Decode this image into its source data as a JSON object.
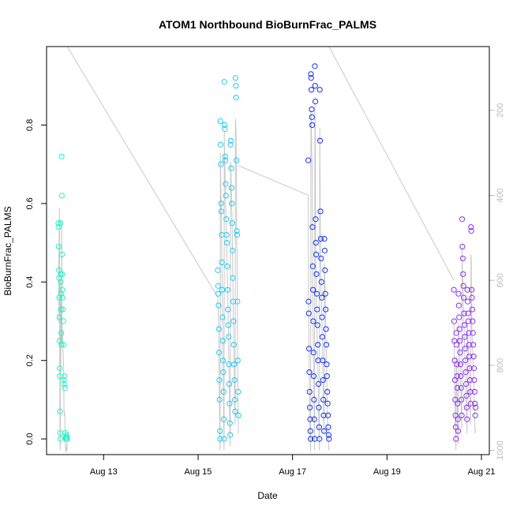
{
  "chart_data": {
    "type": "scatter",
    "title": "ATOM1 Northbound BioBurnFrac_PALMS",
    "xlabel": "Date",
    "ylabel": "BioBurnFrac_PALMS",
    "xlim": [
      "2018-08-11T19:00",
      "2018-08-21T04:00"
    ],
    "ylim": [
      -0.04,
      1.0
    ],
    "x_ticks": [
      "2018-08-13T00:00",
      "2018-08-15T00:00",
      "2018-08-17T00:00",
      "2018-08-19T00:00",
      "2018-08-21T00:00"
    ],
    "x_tick_labels": [
      "Aug 13",
      "Aug 15",
      "Aug 17",
      "Aug 19",
      "Aug 21"
    ],
    "y_ticks": [
      0.0,
      0.2,
      0.4,
      0.6,
      0.8
    ],
    "y_tick_labels": [
      "0.0",
      "0.2",
      "0.4",
      "0.6",
      "0.8"
    ],
    "right_axis": {
      "ticks": [
        200,
        400,
        600,
        800,
        1000
      ],
      "tick_labels": [
        "200",
        "400",
        "600",
        "800",
        "1000"
      ],
      "top_value": 50,
      "bottom_value": 1010,
      "color": "#bbbbbb"
    },
    "grid": false,
    "legend": "none",
    "flight_colors": [
      "#22f5c5",
      "#1ecbf2",
      "#1432f0",
      "#8c2ff2"
    ],
    "profile_color": "#c8c8c8",
    "flights": [
      {
        "color": "#22f5c5",
        "x": [
          "2018-08-12T01:00",
          "2018-08-12T01:05",
          "2018-08-12T01:10",
          "2018-08-12T01:15",
          "2018-08-12T01:20",
          "2018-08-12T01:25",
          "2018-08-12T01:30",
          "2018-08-12T01:35",
          "2018-08-12T01:40",
          "2018-08-12T01:45",
          "2018-08-12T01:50",
          "2018-08-12T01:55",
          "2018-08-12T02:00",
          "2018-08-12T02:05",
          "2018-08-12T02:10",
          "2018-08-12T02:15",
          "2018-08-12T02:20",
          "2018-08-12T02:25",
          "2018-08-12T02:30",
          "2018-08-12T02:35",
          "2018-08-12T02:40",
          "2018-08-12T02:45",
          "2018-08-12T02:50",
          "2018-08-12T02:55",
          "2018-08-12T03:00",
          "2018-08-12T03:10",
          "2018-08-12T03:20",
          "2018-08-12T03:30",
          "2018-08-12T03:40",
          "2018-08-12T03:50",
          "2018-08-12T04:00",
          "2018-08-12T04:10",
          "2018-08-12T04:20",
          "2018-08-12T04:30",
          "2018-08-12T04:40",
          "2018-08-12T04:50",
          "2018-08-12T05:00",
          "2018-08-12T05:10",
          "2018-08-12T05:20",
          "2018-08-12T05:30"
        ],
        "y": [
          0.55,
          0.54,
          0.49,
          0.43,
          0.41,
          0.36,
          0.31,
          0.25,
          0.18,
          0.16,
          0.07,
          0.015,
          0.0,
          0.55,
          0.42,
          0.4,
          0.37,
          0.33,
          0.27,
          0.24,
          0.72,
          0.62,
          0.47,
          0.42,
          0.38,
          0.36,
          0.33,
          0.3,
          0.24,
          0.15,
          0.14,
          0.16,
          0.13,
          0.015,
          0.005,
          0.0,
          0.0,
          0.005,
          0.01,
          0.0
        ],
        "pressure": [
          700,
          640,
          600,
          560,
          520,
          480,
          450,
          430,
          700,
          900,
          980,
          1000,
          980,
          600,
          700,
          800,
          650,
          700,
          720,
          750,
          460,
          520,
          680,
          700,
          740,
          720,
          760,
          780,
          800,
          900,
          920,
          910,
          930,
          990,
          1000,
          1005,
          1000,
          990,
          980,
          1000
        ]
      },
      {
        "color": "#1ecbf2",
        "x": [
          "2018-08-15T10:00",
          "2018-08-15T10:08",
          "2018-08-15T10:16",
          "2018-08-15T10:24",
          "2018-08-15T10:32",
          "2018-08-15T10:40",
          "2018-08-15T10:48",
          "2018-08-15T10:56",
          "2018-08-15T11:04",
          "2018-08-15T11:12",
          "2018-08-15T11:20",
          "2018-08-15T11:28",
          "2018-08-15T11:36",
          "2018-08-15T11:44",
          "2018-08-15T11:52",
          "2018-08-15T12:00",
          "2018-08-15T12:08",
          "2018-08-15T12:16",
          "2018-08-15T12:24",
          "2018-08-15T12:32",
          "2018-08-15T12:40",
          "2018-08-15T12:48",
          "2018-08-15T12:56",
          "2018-08-15T13:04",
          "2018-08-15T13:12",
          "2018-08-15T13:20",
          "2018-08-15T13:28",
          "2018-08-15T13:36",
          "2018-08-15T13:44",
          "2018-08-15T13:52",
          "2018-08-15T14:00",
          "2018-08-15T14:10",
          "2018-08-15T14:20",
          "2018-08-15T14:30",
          "2018-08-15T14:40",
          "2018-08-15T14:50",
          "2018-08-15T15:00",
          "2018-08-15T15:10",
          "2018-08-15T15:20",
          "2018-08-15T15:30",
          "2018-08-15T15:40",
          "2018-08-15T15:50",
          "2018-08-15T16:00",
          "2018-08-15T16:10",
          "2018-08-15T16:20",
          "2018-08-15T16:30",
          "2018-08-15T16:40",
          "2018-08-15T16:50",
          "2018-08-15T17:00",
          "2018-08-15T17:10",
          "2018-08-15T17:20",
          "2018-08-15T17:30",
          "2018-08-15T17:40",
          "2018-08-15T17:50",
          "2018-08-15T18:00",
          "2018-08-15T18:10",
          "2018-08-15T18:20",
          "2018-08-15T18:30",
          "2018-08-15T18:40",
          "2018-08-15T18:50",
          "2018-08-15T19:00",
          "2018-08-15T19:10",
          "2018-08-15T19:20",
          "2018-08-15T19:30",
          "2018-08-15T19:40",
          "2018-08-15T19:50",
          "2018-08-15T20:00",
          "2018-08-15T20:10",
          "2018-08-15T20:20",
          "2018-08-15T20:30"
        ],
        "y": [
          0.43,
          0.39,
          0.37,
          0.34,
          0.28,
          0.22,
          0.15,
          0.1,
          0.02,
          0.0,
          0.81,
          0.75,
          0.7,
          0.6,
          0.58,
          0.52,
          0.45,
          0.38,
          0.31,
          0.25,
          0.2,
          0.17,
          0.12,
          0.05,
          0.0,
          0.91,
          0.8,
          0.79,
          0.72,
          0.71,
          0.65,
          0.62,
          0.56,
          0.52,
          0.5,
          0.44,
          0.38,
          0.33,
          0.29,
          0.26,
          0.19,
          0.14,
          0.09,
          0.04,
          0.01,
          0.75,
          0.76,
          0.69,
          0.64,
          0.6,
          0.55,
          0.48,
          0.41,
          0.35,
          0.3,
          0.24,
          0.19,
          0.15,
          0.1,
          0.07,
          0.92,
          0.9,
          0.87,
          0.71,
          0.53,
          0.52,
          0.35,
          0.2,
          0.12,
          0.06
        ],
        "pressure": [
          640,
          660,
          680,
          700,
          760,
          820,
          880,
          920,
          980,
          1000,
          300,
          340,
          380,
          420,
          480,
          520,
          560,
          620,
          680,
          740,
          800,
          850,
          900,
          960,
          1000,
          250,
          300,
          320,
          360,
          380,
          420,
          440,
          480,
          520,
          540,
          580,
          620,
          660,
          700,
          740,
          800,
          850,
          900,
          960,
          990,
          320,
          330,
          380,
          400,
          440,
          480,
          540,
          600,
          660,
          700,
          760,
          820,
          860,
          900,
          940,
          220,
          230,
          260,
          380,
          520,
          530,
          700,
          820,
          900,
          960
        ]
      },
      {
        "color": "#1432f0",
        "x": [
          "2018-08-17T08:00",
          "2018-08-17T08:08",
          "2018-08-17T08:16",
          "2018-08-17T08:24",
          "2018-08-17T08:32",
          "2018-08-17T08:40",
          "2018-08-17T08:48",
          "2018-08-17T08:56",
          "2018-08-17T09:04",
          "2018-08-17T09:12",
          "2018-08-17T09:20",
          "2018-08-17T09:28",
          "2018-08-17T09:36",
          "2018-08-17T09:44",
          "2018-08-17T09:52",
          "2018-08-17T10:00",
          "2018-08-17T10:08",
          "2018-08-17T10:16",
          "2018-08-17T10:24",
          "2018-08-17T10:32",
          "2018-08-17T10:40",
          "2018-08-17T10:48",
          "2018-08-17T10:56",
          "2018-08-17T11:04",
          "2018-08-17T11:12",
          "2018-08-17T11:20",
          "2018-08-17T11:28",
          "2018-08-17T11:36",
          "2018-08-17T11:44",
          "2018-08-17T11:52",
          "2018-08-17T12:00",
          "2018-08-17T12:10",
          "2018-08-17T12:20",
          "2018-08-17T12:30",
          "2018-08-17T12:40",
          "2018-08-17T12:50",
          "2018-08-17T13:00",
          "2018-08-17T13:10",
          "2018-08-17T13:20",
          "2018-08-17T13:30",
          "2018-08-17T13:40",
          "2018-08-17T13:50",
          "2018-08-17T14:00",
          "2018-08-17T14:10",
          "2018-08-17T14:20",
          "2018-08-17T14:30",
          "2018-08-17T14:40",
          "2018-08-17T14:50",
          "2018-08-17T15:00",
          "2018-08-17T15:10",
          "2018-08-17T15:20",
          "2018-08-17T15:30",
          "2018-08-17T15:40",
          "2018-08-17T15:50",
          "2018-08-17T16:00",
          "2018-08-17T16:10",
          "2018-08-17T16:20",
          "2018-08-17T16:30",
          "2018-08-17T16:40",
          "2018-08-17T16:50",
          "2018-08-17T17:00",
          "2018-08-17T17:10",
          "2018-08-17T17:20",
          "2018-08-17T17:30",
          "2018-08-17T17:40",
          "2018-08-17T17:50",
          "2018-08-17T18:00",
          "2018-08-17T18:10",
          "2018-08-17T18:20",
          "2018-08-17T18:30"
        ],
        "y": [
          0.71,
          0.35,
          0.32,
          0.23,
          0.17,
          0.12,
          0.08,
          0.05,
          0.02,
          0.0,
          0.93,
          0.92,
          0.89,
          0.84,
          0.82,
          0.8,
          0.54,
          0.44,
          0.38,
          0.3,
          0.22,
          0.16,
          0.1,
          0.05,
          0.0,
          0.95,
          0.9,
          0.86,
          0.56,
          0.5,
          0.47,
          0.42,
          0.37,
          0.33,
          0.29,
          0.24,
          0.2,
          0.14,
          0.08,
          0.03,
          0.0,
          0.89,
          0.76,
          0.58,
          0.51,
          0.46,
          0.4,
          0.36,
          0.31,
          0.26,
          0.2,
          0.15,
          0.1,
          0.06,
          0.02,
          0.51,
          0.48,
          0.43,
          0.37,
          0.33,
          0.28,
          0.24,
          0.19,
          0.16,
          0.12,
          0.09,
          0.06,
          0.03,
          0.01,
          0.0
        ],
        "pressure": [
          400,
          700,
          720,
          780,
          850,
          900,
          940,
          970,
          990,
          1005,
          200,
          210,
          240,
          300,
          320,
          340,
          560,
          640,
          680,
          740,
          800,
          850,
          900,
          950,
          1000,
          180,
          230,
          280,
          520,
          560,
          600,
          640,
          680,
          720,
          760,
          800,
          840,
          880,
          930,
          970,
          1000,
          240,
          380,
          520,
          560,
          600,
          640,
          680,
          720,
          760,
          800,
          840,
          880,
          920,
          960,
          560,
          580,
          620,
          660,
          700,
          740,
          780,
          820,
          860,
          900,
          930,
          950,
          970,
          990,
          1000
        ]
      },
      {
        "color": "#8c2ff2",
        "x": [
          "2018-08-20T10:00",
          "2018-08-20T10:08",
          "2018-08-20T10:16",
          "2018-08-20T10:24",
          "2018-08-20T10:32",
          "2018-08-20T10:40",
          "2018-08-20T10:48",
          "2018-08-20T10:56",
          "2018-08-20T11:04",
          "2018-08-20T11:12",
          "2018-08-20T11:20",
          "2018-08-20T11:28",
          "2018-08-20T11:36",
          "2018-08-20T11:44",
          "2018-08-20T11:52",
          "2018-08-20T12:00",
          "2018-08-20T12:10",
          "2018-08-20T12:20",
          "2018-08-20T12:30",
          "2018-08-20T12:40",
          "2018-08-20T12:50",
          "2018-08-20T13:00",
          "2018-08-20T13:10",
          "2018-08-20T13:20",
          "2018-08-20T13:30",
          "2018-08-20T13:40",
          "2018-08-20T13:50",
          "2018-08-20T14:00",
          "2018-08-20T14:10",
          "2018-08-20T14:20",
          "2018-08-20T14:30",
          "2018-08-20T14:40",
          "2018-08-20T14:50",
          "2018-08-20T15:00",
          "2018-08-20T15:10",
          "2018-08-20T15:20",
          "2018-08-20T15:30",
          "2018-08-20T15:40",
          "2018-08-20T15:50",
          "2018-08-20T16:00",
          "2018-08-20T16:10",
          "2018-08-20T16:20",
          "2018-08-20T16:30",
          "2018-08-20T16:40",
          "2018-08-20T16:50",
          "2018-08-20T17:00",
          "2018-08-20T17:10",
          "2018-08-20T17:20",
          "2018-08-20T17:30",
          "2018-08-20T17:40",
          "2018-08-20T17:50",
          "2018-08-20T18:00",
          "2018-08-20T18:10",
          "2018-08-20T18:20",
          "2018-08-20T18:30",
          "2018-08-20T18:40",
          "2018-08-20T18:50",
          "2018-08-20T19:00",
          "2018-08-20T19:10",
          "2018-08-20T19:20",
          "2018-08-20T19:30",
          "2018-08-20T19:40",
          "2018-08-20T19:50",
          "2018-08-20T20:00",
          "2018-08-20T20:10",
          "2018-08-20T20:20",
          "2018-08-20T20:30",
          "2018-08-20T20:40",
          "2018-08-20T20:50",
          "2018-08-20T21:00"
        ],
        "y": [
          0.38,
          0.3,
          0.25,
          0.2,
          0.15,
          0.1,
          0.06,
          0.03,
          0.0,
          0.27,
          0.24,
          0.19,
          0.16,
          0.13,
          0.09,
          0.05,
          0.02,
          0.37,
          0.34,
          0.31,
          0.28,
          0.25,
          0.22,
          0.19,
          0.16,
          0.13,
          0.1,
          0.06,
          0.56,
          0.49,
          0.46,
          0.42,
          0.39,
          0.36,
          0.32,
          0.29,
          0.26,
          0.23,
          0.2,
          0.17,
          0.14,
          0.11,
          0.08,
          0.05,
          0.38,
          0.35,
          0.32,
          0.3,
          0.27,
          0.24,
          0.21,
          0.18,
          0.15,
          0.12,
          0.09,
          0.54,
          0.53,
          0.38,
          0.36,
          0.33,
          0.3,
          0.27,
          0.24,
          0.21,
          0.18,
          0.15,
          0.12,
          0.09,
          0.06,
          0.08
        ],
        "pressure": [
          700,
          760,
          800,
          840,
          880,
          920,
          950,
          980,
          1000,
          780,
          800,
          840,
          870,
          900,
          930,
          960,
          985,
          700,
          720,
          740,
          760,
          780,
          800,
          830,
          860,
          890,
          920,
          950,
          520,
          580,
          600,
          620,
          660,
          680,
          710,
          740,
          760,
          790,
          820,
          850,
          880,
          910,
          930,
          960,
          700,
          720,
          740,
          760,
          780,
          800,
          820,
          850,
          880,
          910,
          940,
          540,
          550,
          700,
          720,
          740,
          760,
          780,
          800,
          820,
          850,
          880,
          910,
          940,
          960,
          950
        ]
      }
    ],
    "transit_lines": [
      {
        "x": [
          "2018-08-12T05:30",
          "2018-08-15T10:00"
        ],
        "pressure": [
          50,
          640
        ]
      },
      {
        "x": [
          "2018-08-15T20:30",
          "2018-08-17T08:00"
        ],
        "pressure": [
          330,
          400
        ]
      },
      {
        "x": [
          "2018-08-17T18:30",
          "2018-08-20T10:00"
        ],
        "pressure": [
          50,
          600
        ]
      }
    ]
  }
}
